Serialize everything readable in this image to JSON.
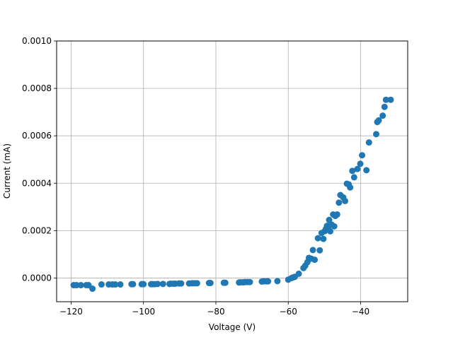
{
  "chart_data": {
    "type": "scatter",
    "xlabel": "Voltage (V)",
    "ylabel": "Current (mA)",
    "xlim": [
      -124,
      -27
    ],
    "ylim": [
      -0.0001,
      0.001
    ],
    "xticks": [
      -120,
      -100,
      -80,
      -60,
      -40
    ],
    "xtick_labels": [
      "−120",
      "−100",
      "−80",
      "−60",
      "−40"
    ],
    "yticks": [
      0.0,
      0.0002,
      0.0004,
      0.0006,
      0.0008,
      0.001
    ],
    "ytick_labels": [
      "0.0000",
      "0.0002",
      "0.0004",
      "0.0006",
      "0.0008",
      "0.0010"
    ],
    "grid": true,
    "marker_color": "#1f77b4",
    "series": [
      {
        "x": [
          -119.3,
          -118.5,
          -117.3,
          -115.8,
          -115.2,
          -114.1,
          -111.6,
          -109.6,
          -108.6,
          -107.8,
          -106.4,
          -103.3,
          -102.9,
          -100.5,
          -100.0,
          -97.9,
          -97.5,
          -96.9,
          -96.1,
          -94.6,
          -92.8,
          -92.5,
          -91.7,
          -91.2,
          -90.2,
          -89.6,
          -87.4,
          -86.6,
          -86.2,
          -85.7,
          -85.2,
          -81.9,
          -81.5,
          -77.8,
          -77.4,
          -73.6,
          -73.3,
          -72.7,
          -72.3,
          -71.9,
          -71.2,
          -70.6,
          -67.3,
          -66.8,
          -66.0,
          -65.6,
          -63.0,
          -60.0,
          -59.1,
          -58.6,
          -58.2,
          -57.1,
          -55.8,
          -55.3,
          -54.7,
          -54.3,
          -53.7,
          -53.2,
          -52.7,
          -51.8,
          -51.3,
          -50.8,
          -50.3,
          -49.9,
          -49.6,
          -49.3,
          -49.0,
          -48.7,
          -48.4,
          -48.0,
          -47.6,
          -47.3,
          -47.0,
          -46.5,
          -46.0,
          -45.6,
          -44.8,
          -44.3,
          -43.8,
          -43.3,
          -42.9,
          -42.3,
          -41.8,
          -40.9,
          -40.1,
          -39.6,
          -38.4,
          -37.7,
          -35.7,
          -35.4,
          -35.0,
          -33.9,
          -33.4,
          -33.0,
          -31.7
        ],
        "y": [
          -3e-05,
          -3e-05,
          -3e-05,
          -3e-05,
          -3e-05,
          -4.5e-05,
          -2.7e-05,
          -2.7e-05,
          -2.7e-05,
          -2.7e-05,
          -2.7e-05,
          -2.6e-05,
          -2.6e-05,
          -2.6e-05,
          -2.6e-05,
          -2.6e-05,
          -2.6e-05,
          -2.6e-05,
          -2.5e-05,
          -2.5e-05,
          -2.5e-05,
          -2.4e-05,
          -2.4e-05,
          -2.4e-05,
          -2.3e-05,
          -2.3e-05,
          -2.3e-05,
          -2.2e-05,
          -2.2e-05,
          -2.2e-05,
          -2.2e-05,
          -2.1e-05,
          -2.1e-05,
          -2e-05,
          -2e-05,
          -1.9e-05,
          -1.8e-05,
          -1.8e-05,
          -1.8e-05,
          -1.7e-05,
          -1.7e-05,
          -1.7e-05,
          -1.5e-05,
          -1.4e-05,
          -1.4e-05,
          -1.4e-05,
          -1.3e-05,
          -7e-06,
          0.0,
          3e-06,
          5e-06,
          1.8e-05,
          4.2e-05,
          5.2e-05,
          6.7e-05,
          8.5e-05,
          8.2e-05,
          0.000118,
          7.7e-05,
          0.000168,
          0.000117,
          0.00019,
          0.000165,
          0.000198,
          0.000207,
          0.00022,
          0.000213,
          0.000245,
          0.000197,
          0.000225,
          0.000268,
          0.000218,
          0.000262,
          0.000268,
          0.000318,
          0.00035,
          0.00034,
          0.000325,
          0.000398,
          0.000395,
          0.000382,
          0.000452,
          0.000425,
          0.00046,
          0.000482,
          0.000518,
          0.000455,
          0.000572,
          0.000607,
          0.000658,
          0.000665,
          0.000685,
          0.000722,
          0.000752,
          0.000752
        ]
      }
    ]
  }
}
